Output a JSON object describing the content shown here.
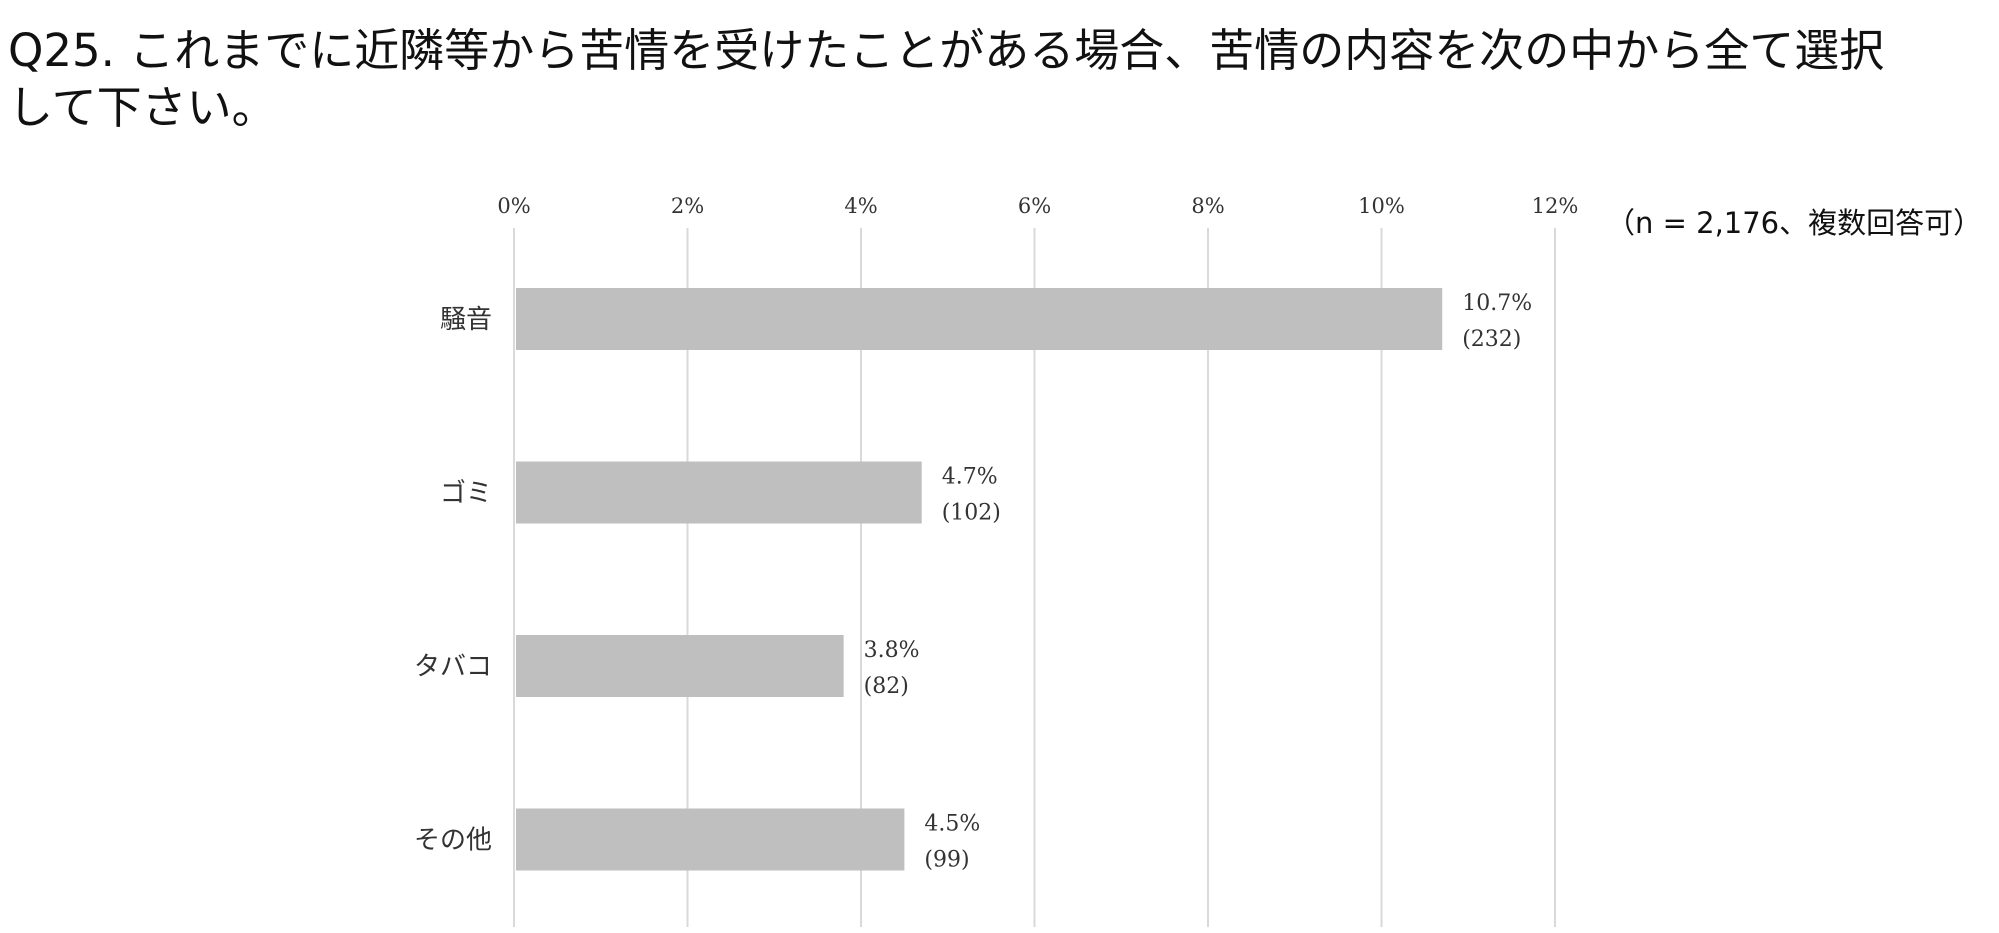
{
  "title": {
    "line1": "Q25. これまでに近隣等から苦情を受けたことがある場合、苦情の内容を次の中から全て選択",
    "line2": "して下さい。"
  },
  "sample_note": "（n = 2,176、複数回答可）",
  "colors": {
    "bar": "#bfbfbf",
    "grid": "#d9d9d9",
    "text": "#333333"
  },
  "chart_data": {
    "type": "bar",
    "orientation": "horizontal",
    "categories": [
      "騒音",
      "ゴミ",
      "タバコ",
      "その他"
    ],
    "series": [
      {
        "values": [
          10.7,
          4.7,
          3.8,
          4.5
        ],
        "value_labels": [
          "10.7%",
          "4.7%",
          "3.8%",
          "4.5%"
        ],
        "count_labels": [
          "(232)",
          "(102)",
          "(82)",
          "(99)"
        ]
      }
    ],
    "xlim": [
      0,
      12
    ],
    "xticks": [
      0,
      2,
      4,
      6,
      8,
      10,
      12
    ],
    "xtick_labels": [
      "0%",
      "2%",
      "4%",
      "6%",
      "8%",
      "10%",
      "12%"
    ],
    "axis_position": "top",
    "grid": true,
    "legend": "none"
  }
}
